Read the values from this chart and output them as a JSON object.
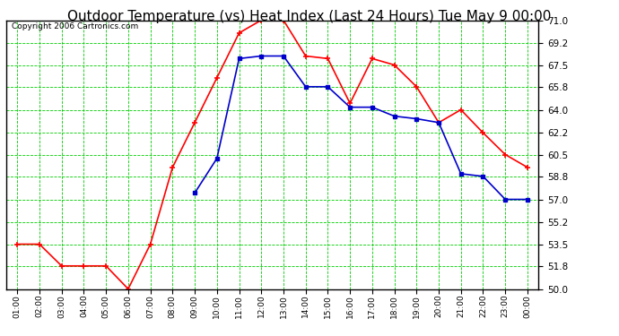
{
  "title": "Outdoor Temperature (vs) Heat Index (Last 24 Hours) Tue May 9 00:00",
  "copyright": "Copyright 2006 Cartronics.com",
  "x_labels": [
    "01:00",
    "02:00",
    "03:00",
    "04:00",
    "05:00",
    "06:00",
    "07:00",
    "08:00",
    "09:00",
    "10:00",
    "11:00",
    "12:00",
    "13:00",
    "14:00",
    "15:00",
    "16:00",
    "17:00",
    "18:00",
    "19:00",
    "20:00",
    "21:00",
    "22:00",
    "23:00",
    "00:00"
  ],
  "temp_red": [
    53.5,
    53.5,
    51.8,
    51.8,
    51.8,
    50.0,
    53.5,
    59.5,
    63.0,
    66.5,
    70.0,
    71.0,
    71.0,
    68.2,
    68.0,
    64.5,
    68.0,
    67.5,
    65.8,
    63.0,
    64.0,
    62.2,
    60.5,
    59.5
  ],
  "heat_blue": [
    null,
    null,
    null,
    null,
    null,
    null,
    null,
    null,
    57.5,
    60.2,
    68.0,
    68.2,
    68.2,
    65.8,
    65.8,
    64.2,
    64.2,
    63.5,
    63.3,
    63.0,
    59.0,
    58.8,
    57.0,
    57.0
  ],
  "ylim_min": 50.0,
  "ylim_max": 71.0,
  "yticks": [
    50.0,
    51.8,
    53.5,
    55.2,
    57.0,
    58.8,
    60.5,
    62.2,
    64.0,
    65.8,
    67.5,
    69.2,
    71.0
  ],
  "red_color": "#ff0000",
  "blue_color": "#0000cc",
  "bg_color": "#ffffff",
  "plot_bg": "#ffffff",
  "grid_color": "#00cc00",
  "title_fontsize": 11,
  "copyright_fontsize": 6.5
}
